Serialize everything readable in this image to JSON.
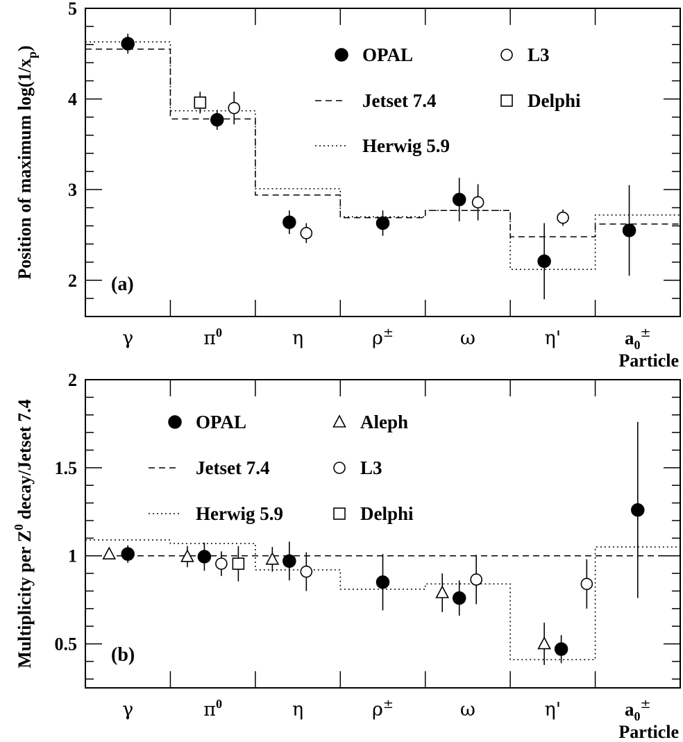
{
  "figure": {
    "xlabel": "Particle",
    "categories": [
      "γ",
      "π0",
      "η",
      "ρ±",
      "ω",
      "η'",
      "a0±"
    ]
  },
  "chart_data": [
    {
      "panel_label": "(a)",
      "type": "scatter",
      "ylabel": "Position of maximum log(1/x_p)",
      "xlabel": "Particle",
      "categories": [
        "γ",
        "π0",
        "η",
        "ρ±",
        "ω",
        "η'",
        "a0±"
      ],
      "ylim": [
        1.6,
        5.0
      ],
      "yticks": [
        2,
        3,
        4,
        5
      ],
      "legend": [
        {
          "name": "OPAL",
          "marker": "filled-circle"
        },
        {
          "name": "L3",
          "marker": "open-circle"
        },
        {
          "name": "Jetset 7.4",
          "marker": "dashed-line"
        },
        {
          "name": "Delphi",
          "marker": "open-square"
        },
        {
          "name": "Herwig 5.9",
          "marker": "dotted-line"
        }
      ],
      "series": [
        {
          "name": "OPAL",
          "marker": "filled-circle",
          "points": [
            {
              "category": "γ",
              "offset": 0.0,
              "y": 4.61,
              "err": 0.11
            },
            {
              "category": "π0",
              "offset": 0.05,
              "y": 3.77,
              "err": 0.11
            },
            {
              "category": "η",
              "offset": -0.1,
              "y": 2.64,
              "err": 0.13
            },
            {
              "category": "ρ±",
              "offset": 0.0,
              "y": 2.63,
              "err": 0.14
            },
            {
              "category": "ω",
              "offset": -0.1,
              "y": 2.89,
              "err": 0.24
            },
            {
              "category": "η'",
              "offset": -0.1,
              "y": 2.21,
              "err": 0.42
            },
            {
              "category": "a0±",
              "offset": -0.1,
              "y": 2.55,
              "err": 0.5
            }
          ]
        },
        {
          "name": "L3",
          "marker": "open-circle",
          "points": [
            {
              "category": "π0",
              "offset": 0.25,
              "y": 3.9,
              "err": 0.18
            },
            {
              "category": "η",
              "offset": 0.1,
              "y": 2.52,
              "err": 0.11
            },
            {
              "category": "ω",
              "offset": 0.12,
              "y": 2.86,
              "err": 0.2
            },
            {
              "category": "η'",
              "offset": 0.12,
              "y": 2.69,
              "err": 0.09
            }
          ]
        },
        {
          "name": "Delphi",
          "marker": "open-square",
          "points": [
            {
              "category": "π0",
              "offset": -0.15,
              "y": 3.96,
              "err": 0.12
            }
          ]
        },
        {
          "name": "Jetset 7.4",
          "style": "dashed-step",
          "values": [
            4.55,
            3.78,
            2.94,
            2.69,
            2.77,
            2.48,
            2.62
          ]
        },
        {
          "name": "Herwig 5.9",
          "style": "dotted-step",
          "values": [
            4.63,
            3.87,
            3.01,
            2.7,
            2.77,
            2.12,
            2.72
          ]
        }
      ]
    },
    {
      "panel_label": "(b)",
      "type": "scatter",
      "ylabel": "Multiplicity per Z0 decay/Jetset 7.4",
      "xlabel": "Particle",
      "categories": [
        "γ",
        "π0",
        "η",
        "ρ±",
        "ω",
        "η'",
        "a0±"
      ],
      "ylim": [
        0.25,
        2.0
      ],
      "yticks": [
        0.5,
        1,
        1.5,
        2
      ],
      "legend": [
        {
          "name": "OPAL",
          "marker": "filled-circle"
        },
        {
          "name": "Aleph",
          "marker": "open-triangle"
        },
        {
          "name": "Jetset 7.4",
          "marker": "dashed-line"
        },
        {
          "name": "L3",
          "marker": "open-circle"
        },
        {
          "name": "Herwig 5.9",
          "marker": "dotted-line"
        },
        {
          "name": "Delphi",
          "marker": "open-square"
        }
      ],
      "series": [
        {
          "name": "OPAL",
          "marker": "filled-circle",
          "points": [
            {
              "category": "γ",
              "offset": 0.0,
              "y": 1.01,
              "err": 0.05
            },
            {
              "category": "π0",
              "offset": -0.1,
              "y": 0.995,
              "err": 0.08
            },
            {
              "category": "η",
              "offset": -0.1,
              "y": 0.97,
              "err": 0.11
            },
            {
              "category": "ρ±",
              "offset": 0.0,
              "y": 0.85,
              "err": 0.16
            },
            {
              "category": "ω",
              "offset": -0.1,
              "y": 0.76,
              "err": 0.1
            },
            {
              "category": "η'",
              "offset": 0.1,
              "y": 0.47,
              "err": 0.08
            },
            {
              "category": "a0±",
              "offset": 0.0,
              "y": 1.26,
              "err": 0.5
            }
          ]
        },
        {
          "name": "Aleph",
          "marker": "open-triangle",
          "points": [
            {
              "category": "γ",
              "offset": -0.22,
              "y": 1.01,
              "err": 0.02
            },
            {
              "category": "π0",
              "offset": -0.3,
              "y": 0.995,
              "err": 0.06
            },
            {
              "category": "η",
              "offset": -0.3,
              "y": 0.98,
              "err": 0.07
            },
            {
              "category": "ω",
              "offset": -0.3,
              "y": 0.79,
              "err": 0.11
            },
            {
              "category": "η'",
              "offset": -0.1,
              "y": 0.5,
              "err": 0.12
            }
          ]
        },
        {
          "name": "L3",
          "marker": "open-circle",
          "points": [
            {
              "category": "π0",
              "offset": 0.1,
              "y": 0.955,
              "err": 0.07
            },
            {
              "category": "η",
              "offset": 0.1,
              "y": 0.91,
              "err": 0.11
            },
            {
              "category": "ω",
              "offset": 0.1,
              "y": 0.865,
              "err": 0.14
            },
            {
              "category": "η'",
              "offset": 0.4,
              "y": 0.84,
              "err": 0.14
            }
          ]
        },
        {
          "name": "Delphi",
          "marker": "open-square",
          "points": [
            {
              "category": "π0",
              "offset": 0.3,
              "y": 0.955,
              "err": 0.1
            }
          ]
        },
        {
          "name": "Jetset 7.4",
          "style": "dashed-step",
          "values": [
            1.0,
            1.0,
            1.0,
            1.0,
            1.0,
            1.0,
            1.0
          ]
        },
        {
          "name": "Herwig 5.9",
          "style": "dotted-step",
          "values": [
            1.09,
            1.07,
            0.92,
            0.81,
            0.84,
            0.41,
            1.05
          ]
        }
      ]
    }
  ]
}
